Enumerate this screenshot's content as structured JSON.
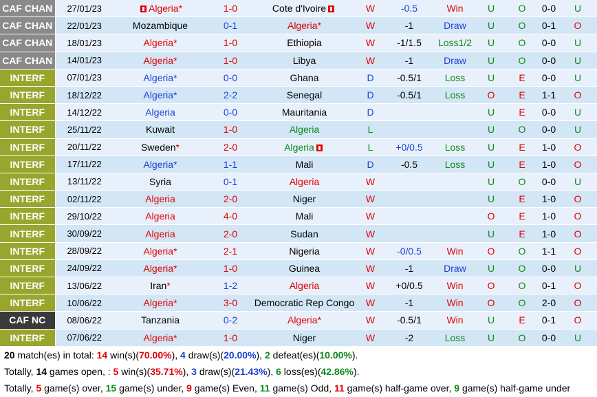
{
  "colors": {
    "league_caf_chan": "#8a8a8a",
    "league_interf": "#99a62e",
    "league_caf_nc": "#3a3a3a",
    "home_highlight": "#e10000",
    "away_highlight": "#1c3fd4",
    "win": "#e10000",
    "draw": "#1c3fd4",
    "loss": "#0c8a17"
  },
  "matches": [
    {
      "league": "CAF CHAN",
      "league_color": "#8a8a8a",
      "date": "27/01/23",
      "home": "Algeria*",
      "home_color": "red",
      "home_flag": true,
      "score": "1-0",
      "score_color": "red",
      "away": "Cote d'Ivoire",
      "away_color": "black",
      "away_flag": true,
      "result": "W",
      "result_color": "red",
      "handicap": "-0.5",
      "handicap_color": "blue",
      "hc_result": "Win",
      "hc_color": "red",
      "ou": "U",
      "ou_color": "green",
      "oe": "O",
      "oe_color": "green",
      "ht": "0-0",
      "ht_ou": "U",
      "ht_ou_color": "green"
    },
    {
      "league": "CAF CHAN",
      "league_color": "#8a8a8a",
      "date": "22/01/23",
      "home": "Mozambique",
      "home_color": "black",
      "home_flag": false,
      "score": "0-1",
      "score_color": "blue",
      "away": "Algeria*",
      "away_color": "red",
      "away_flag": false,
      "result": "W",
      "result_color": "red",
      "handicap": "-1",
      "handicap_color": "black",
      "hc_result": "Draw",
      "hc_color": "blue",
      "ou": "U",
      "ou_color": "green",
      "oe": "O",
      "oe_color": "green",
      "ht": "0-1",
      "ht_ou": "O",
      "ht_ou_color": "red"
    },
    {
      "league": "CAF CHAN",
      "league_color": "#8a8a8a",
      "date": "18/01/23",
      "home": "Algeria*",
      "home_color": "red",
      "home_flag": false,
      "score": "1-0",
      "score_color": "red",
      "away": "Ethiopia",
      "away_color": "black",
      "away_flag": false,
      "result": "W",
      "result_color": "red",
      "handicap": "-1/1.5",
      "handicap_color": "black",
      "hc_result": "Loss1/2",
      "hc_color": "green",
      "ou": "U",
      "ou_color": "green",
      "oe": "O",
      "oe_color": "green",
      "ht": "0-0",
      "ht_ou": "U",
      "ht_ou_color": "green"
    },
    {
      "league": "CAF CHAN",
      "league_color": "#8a8a8a",
      "date": "14/01/23",
      "home": "Algeria*",
      "home_color": "red",
      "home_flag": false,
      "score": "1-0",
      "score_color": "red",
      "away": "Libya",
      "away_color": "black",
      "away_flag": false,
      "result": "W",
      "result_color": "red",
      "handicap": "-1",
      "handicap_color": "black",
      "hc_result": "Draw",
      "hc_color": "blue",
      "ou": "U",
      "ou_color": "green",
      "oe": "O",
      "oe_color": "green",
      "ht": "0-0",
      "ht_ou": "U",
      "ht_ou_color": "green"
    },
    {
      "league": "INTERF",
      "league_color": "#99a62e",
      "date": "07/01/23",
      "home": "Algeria*",
      "home_color": "blue",
      "home_flag": false,
      "score": "0-0",
      "score_color": "blue",
      "away": "Ghana",
      "away_color": "black",
      "away_flag": false,
      "result": "D",
      "result_color": "blue",
      "handicap": "-0.5/1",
      "handicap_color": "black",
      "hc_result": "Loss",
      "hc_color": "green",
      "ou": "U",
      "ou_color": "green",
      "oe": "E",
      "oe_color": "red",
      "ht": "0-0",
      "ht_ou": "U",
      "ht_ou_color": "green"
    },
    {
      "league": "INTERF",
      "league_color": "#99a62e",
      "date": "18/12/22",
      "home": "Algeria*",
      "home_color": "blue",
      "home_flag": false,
      "score": "2-2",
      "score_color": "blue",
      "away": "Senegal",
      "away_color": "black",
      "away_flag": false,
      "result": "D",
      "result_color": "blue",
      "handicap": "-0.5/1",
      "handicap_color": "black",
      "hc_result": "Loss",
      "hc_color": "green",
      "ou": "O",
      "ou_color": "red",
      "oe": "E",
      "oe_color": "red",
      "ht": "1-1",
      "ht_ou": "O",
      "ht_ou_color": "red"
    },
    {
      "league": "INTERF",
      "league_color": "#99a62e",
      "date": "14/12/22",
      "home": "Algeria",
      "home_color": "blue",
      "home_flag": false,
      "score": "0-0",
      "score_color": "blue",
      "away": "Mauritania",
      "away_color": "black",
      "away_flag": false,
      "result": "D",
      "result_color": "blue",
      "handicap": "",
      "handicap_color": "black",
      "hc_result": "",
      "hc_color": "black",
      "ou": "U",
      "ou_color": "green",
      "oe": "E",
      "oe_color": "red",
      "ht": "0-0",
      "ht_ou": "U",
      "ht_ou_color": "green"
    },
    {
      "league": "INTERF",
      "league_color": "#99a62e",
      "date": "25/11/22",
      "home": "Kuwait",
      "home_color": "black",
      "home_flag": false,
      "score": "1-0",
      "score_color": "red",
      "away": "Algeria",
      "away_color": "green",
      "away_flag": false,
      "result": "L",
      "result_color": "green",
      "handicap": "",
      "handicap_color": "black",
      "hc_result": "",
      "hc_color": "black",
      "ou": "U",
      "ou_color": "green",
      "oe": "O",
      "oe_color": "green",
      "ht": "0-0",
      "ht_ou": "U",
      "ht_ou_color": "green"
    },
    {
      "league": "INTERF",
      "league_color": "#99a62e",
      "date": "20/11/22",
      "home": "Sweden*",
      "home_color": "black",
      "home_star_red": true,
      "home_flag": false,
      "score": "2-0",
      "score_color": "red",
      "away": "Algeria",
      "away_color": "green",
      "away_flag": true,
      "result": "L",
      "result_color": "green",
      "handicap": "+0/0.5",
      "handicap_color": "blue",
      "hc_result": "Loss",
      "hc_color": "green",
      "ou": "U",
      "ou_color": "green",
      "oe": "E",
      "oe_color": "red",
      "ht": "1-0",
      "ht_ou": "O",
      "ht_ou_color": "red"
    },
    {
      "league": "INTERF",
      "league_color": "#99a62e",
      "date": "17/11/22",
      "home": "Algeria*",
      "home_color": "blue",
      "home_flag": false,
      "score": "1-1",
      "score_color": "blue",
      "away": "Mali",
      "away_color": "black",
      "away_flag": false,
      "result": "D",
      "result_color": "blue",
      "handicap": "-0.5",
      "handicap_color": "black",
      "hc_result": "Loss",
      "hc_color": "green",
      "ou": "U",
      "ou_color": "green",
      "oe": "E",
      "oe_color": "red",
      "ht": "1-0",
      "ht_ou": "O",
      "ht_ou_color": "red"
    },
    {
      "league": "INTERF",
      "league_color": "#99a62e",
      "date": "13/11/22",
      "home": "Syria",
      "home_color": "black",
      "home_flag": false,
      "score": "0-1",
      "score_color": "blue",
      "away": "Algeria",
      "away_color": "red",
      "away_flag": false,
      "result": "W",
      "result_color": "red",
      "handicap": "",
      "handicap_color": "black",
      "hc_result": "",
      "hc_color": "black",
      "ou": "U",
      "ou_color": "green",
      "oe": "O",
      "oe_color": "green",
      "ht": "0-0",
      "ht_ou": "U",
      "ht_ou_color": "green"
    },
    {
      "league": "INTERF",
      "league_color": "#99a62e",
      "date": "02/11/22",
      "home": "Algeria",
      "home_color": "red",
      "home_flag": false,
      "score": "2-0",
      "score_color": "red",
      "away": "Niger",
      "away_color": "black",
      "away_flag": false,
      "result": "W",
      "result_color": "red",
      "handicap": "",
      "handicap_color": "black",
      "hc_result": "",
      "hc_color": "black",
      "ou": "U",
      "ou_color": "green",
      "oe": "E",
      "oe_color": "red",
      "ht": "1-0",
      "ht_ou": "O",
      "ht_ou_color": "red"
    },
    {
      "league": "INTERF",
      "league_color": "#99a62e",
      "date": "29/10/22",
      "home": "Algeria",
      "home_color": "red",
      "home_flag": false,
      "score": "4-0",
      "score_color": "red",
      "away": "Mali",
      "away_color": "black",
      "away_flag": false,
      "result": "W",
      "result_color": "red",
      "handicap": "",
      "handicap_color": "black",
      "hc_result": "",
      "hc_color": "black",
      "ou": "O",
      "ou_color": "red",
      "oe": "E",
      "oe_color": "red",
      "ht": "1-0",
      "ht_ou": "O",
      "ht_ou_color": "red"
    },
    {
      "league": "INTERF",
      "league_color": "#99a62e",
      "date": "30/09/22",
      "home": "Algeria",
      "home_color": "red",
      "home_flag": false,
      "score": "2-0",
      "score_color": "red",
      "away": "Sudan",
      "away_color": "black",
      "away_flag": false,
      "result": "W",
      "result_color": "red",
      "handicap": "",
      "handicap_color": "black",
      "hc_result": "",
      "hc_color": "black",
      "ou": "U",
      "ou_color": "green",
      "oe": "E",
      "oe_color": "red",
      "ht": "1-0",
      "ht_ou": "O",
      "ht_ou_color": "red"
    },
    {
      "league": "INTERF",
      "league_color": "#99a62e",
      "date": "28/09/22",
      "home": "Algeria*",
      "home_color": "red",
      "home_flag": false,
      "score": "2-1",
      "score_color": "red",
      "away": "Nigeria",
      "away_color": "black",
      "away_flag": false,
      "result": "W",
      "result_color": "red",
      "handicap": "-0/0.5",
      "handicap_color": "blue",
      "hc_result": "Win",
      "hc_color": "red",
      "ou": "O",
      "ou_color": "red",
      "oe": "O",
      "oe_color": "green",
      "ht": "1-1",
      "ht_ou": "O",
      "ht_ou_color": "red"
    },
    {
      "league": "INTERF",
      "league_color": "#99a62e",
      "date": "24/09/22",
      "home": "Algeria*",
      "home_color": "red",
      "home_flag": false,
      "score": "1-0",
      "score_color": "red",
      "away": "Guinea",
      "away_color": "black",
      "away_flag": false,
      "result": "W",
      "result_color": "red",
      "handicap": "-1",
      "handicap_color": "black",
      "hc_result": "Draw",
      "hc_color": "blue",
      "ou": "U",
      "ou_color": "green",
      "oe": "O",
      "oe_color": "green",
      "ht": "0-0",
      "ht_ou": "U",
      "ht_ou_color": "green"
    },
    {
      "league": "INTERF",
      "league_color": "#99a62e",
      "date": "13/06/22",
      "home": "Iran*",
      "home_color": "black",
      "home_star_red": true,
      "home_flag": false,
      "score": "1-2",
      "score_color": "blue",
      "away": "Algeria",
      "away_color": "red",
      "away_flag": false,
      "result": "W",
      "result_color": "red",
      "handicap": "+0/0.5",
      "handicap_color": "black",
      "hc_result": "Win",
      "hc_color": "red",
      "ou": "O",
      "ou_color": "red",
      "oe": "O",
      "oe_color": "green",
      "ht": "0-1",
      "ht_ou": "O",
      "ht_ou_color": "red"
    },
    {
      "league": "INTERF",
      "league_color": "#99a62e",
      "date": "10/06/22",
      "home": "Algeria*",
      "home_color": "red",
      "home_flag": false,
      "score": "3-0",
      "score_color": "red",
      "away": "Democratic Rep Congo",
      "away_color": "black",
      "away_flag": false,
      "result": "W",
      "result_color": "red",
      "handicap": "-1",
      "handicap_color": "black",
      "hc_result": "Win",
      "hc_color": "red",
      "ou": "O",
      "ou_color": "red",
      "oe": "O",
      "oe_color": "green",
      "ht": "2-0",
      "ht_ou": "O",
      "ht_ou_color": "red"
    },
    {
      "league": "CAF NC",
      "league_color": "#3a3a3a",
      "date": "08/06/22",
      "home": "Tanzania",
      "home_color": "black",
      "home_flag": false,
      "score": "0-2",
      "score_color": "blue",
      "away": "Algeria*",
      "away_color": "red",
      "away_flag": false,
      "result": "W",
      "result_color": "red",
      "handicap": "-0.5/1",
      "handicap_color": "black",
      "hc_result": "Win",
      "hc_color": "red",
      "ou": "U",
      "ou_color": "green",
      "oe": "E",
      "oe_color": "red",
      "ht": "0-1",
      "ht_ou": "O",
      "ht_ou_color": "red"
    },
    {
      "league": "INTERF",
      "league_color": "#99a62e",
      "date": "07/06/22",
      "home": "Algeria*",
      "home_color": "red",
      "home_flag": false,
      "score": "1-0",
      "score_color": "red",
      "away": "Niger",
      "away_color": "black",
      "away_flag": false,
      "result": "W",
      "result_color": "red",
      "handicap": "-2",
      "handicap_color": "black",
      "hc_result": "Loss",
      "hc_color": "green",
      "ou": "U",
      "ou_color": "green",
      "oe": "O",
      "oe_color": "green",
      "ht": "0-0",
      "ht_ou": "U",
      "ht_ou_color": "green"
    }
  ],
  "summary": {
    "line1": {
      "total": "20",
      "t1": " match(es) in total: ",
      "wins": "14",
      "t2": " win(s)(",
      "win_pct": "70.00%",
      "t3": "), ",
      "draws": "4",
      "t4": " draw(s)(",
      "draw_pct": "20.00%",
      "t5": "), ",
      "defeats": "2",
      "t6": " defeat(es)(",
      "defeat_pct": "10.00%",
      "t7": ")."
    },
    "line2": {
      "t0": "Totally, ",
      "open": "14",
      "t1": " games open, : ",
      "wins": "5",
      "t2": " win(s)(",
      "win_pct": "35.71%",
      "t3": "), ",
      "draws": "3",
      "t4": " draw(s)(",
      "draw_pct": "21.43%",
      "t5": "), ",
      "losses": "6",
      "t6": " loss(es)(",
      "loss_pct": "42.86%",
      "t7": ")."
    },
    "line3": {
      "t0": "Totally, ",
      "over": "5",
      "t1": " game(s) over, ",
      "under": "15",
      "t2": " game(s) under, ",
      "even": "9",
      "t3": " game(s) Even, ",
      "odd": "11",
      "t4": " game(s) Odd, ",
      "hg_over": "11",
      "t5": " game(s) half-game over, ",
      "hg_under": "9",
      "t6": " game(s) half-game under"
    }
  }
}
